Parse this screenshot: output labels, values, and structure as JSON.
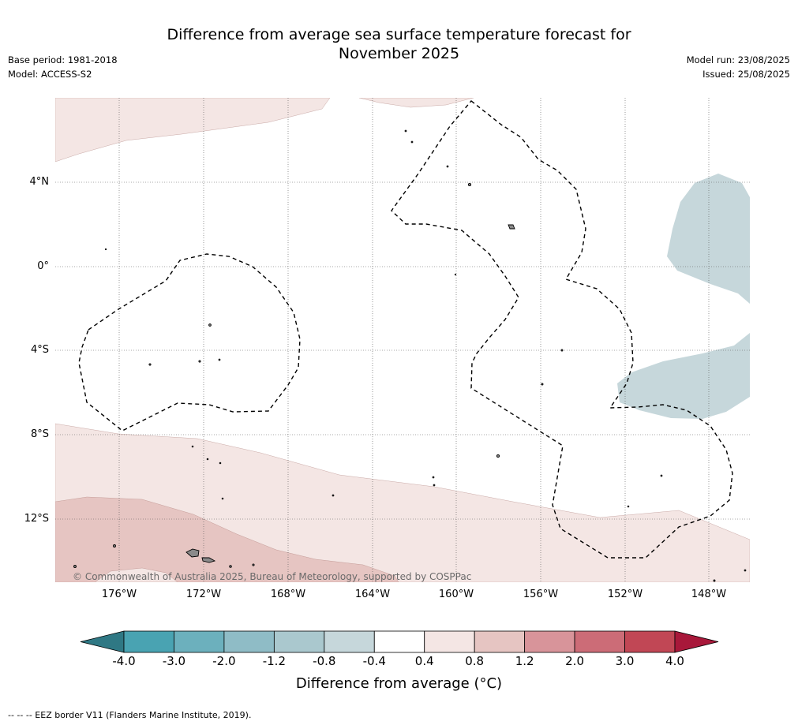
{
  "header": {
    "title_line1": "Difference from average sea surface temperature forecast for",
    "title_line2": "November 2025",
    "base_period": "Base period: 1981-2018",
    "model": "Model: ACCESS-S2",
    "model_run": "Model run: 23/08/2025",
    "issued": "Issued: 25/08/2025"
  },
  "map": {
    "lat_labels": [
      "4°N",
      "0°",
      "4°S",
      "8°S",
      "12°S"
    ],
    "lon_labels": [
      "176°W",
      "172°W",
      "168°W",
      "164°W",
      "160°W",
      "156°W",
      "152°W",
      "148°W"
    ],
    "copyright": "© Commonwealth of Australia 2025, Bureau of Meteorology, supported by COSPPac",
    "colors": {
      "warm_light": "#f4e6e4",
      "warm_medium": "#e6c5c2",
      "cool_light": "#c6d7db",
      "land": "#8a8a8a",
      "eez_border": "#000000"
    }
  },
  "colorbar": {
    "ticks": [
      "-4.0",
      "-3.0",
      "-2.0",
      "-1.2",
      "-0.8",
      "-0.4",
      "0.4",
      "0.8",
      "1.2",
      "2.0",
      "3.0",
      "4.0"
    ],
    "colors": [
      "#2f7884",
      "#49a3b2",
      "#6cb0bd",
      "#8fbcc6",
      "#aac8ce",
      "#c6d7db",
      "#ffffff",
      "#f4e6e4",
      "#e6c5c2",
      "#d8949a",
      "#cc6c77",
      "#c14755",
      "#a8183a"
    ],
    "label": "Difference from average (°C)"
  },
  "footnote": "--  --  -- EEZ border V11 (Flanders Marine Institute, 2019)."
}
